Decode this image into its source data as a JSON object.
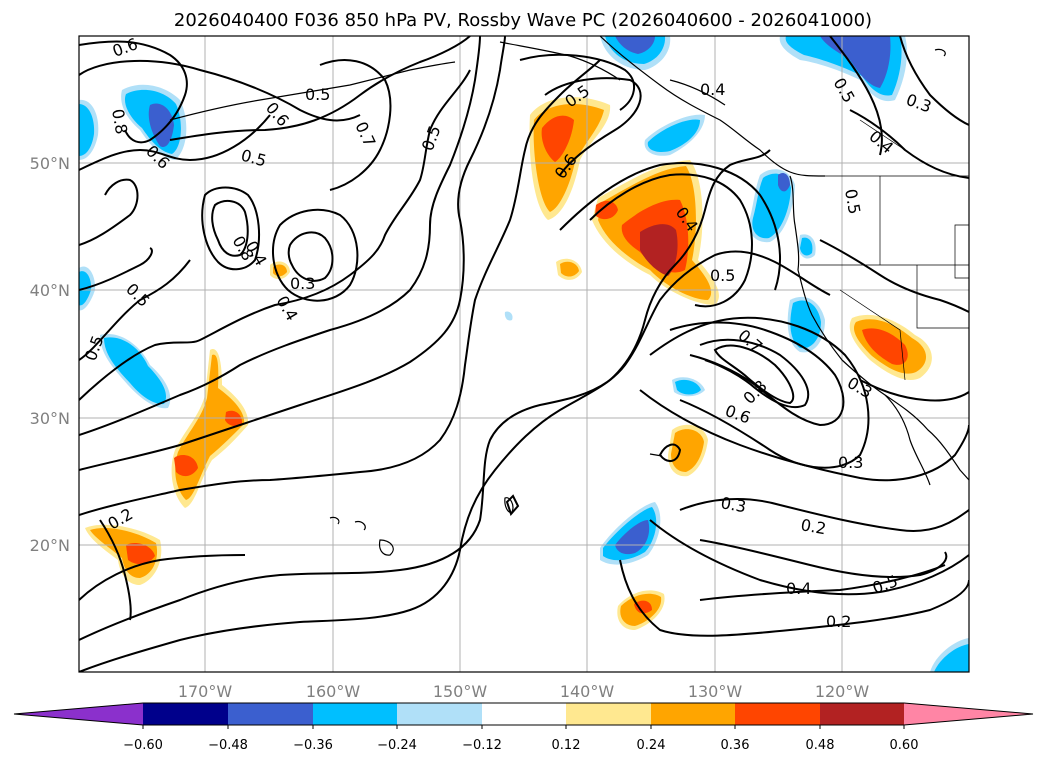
{
  "title": "2026040400 F036 850 hPa PV, Rossby Wave PC (2026040600 - 2026041000)",
  "map": {
    "lon_labels": [
      "170°W",
      "160°W",
      "150°W",
      "140°W",
      "130°W",
      "120°W"
    ],
    "lat_labels": [
      "50°N",
      "40°N",
      "30°N",
      "20°N"
    ]
  },
  "contour_labels": [
    "0.6",
    "0.8",
    "0.6",
    "0.6",
    "0.5",
    "0.7",
    "0.5",
    "0.5",
    "0.6",
    "0.4",
    "0.4",
    "0.5",
    "0.3",
    "0.4",
    "0.5",
    "0.4",
    "0.5",
    "0.8",
    "0.5",
    "0.3",
    "0.4",
    "0.5",
    "0.5",
    "0.7",
    "0.8",
    "0.6",
    "0.3",
    "0.3",
    "0.3",
    "0.2",
    "0.4",
    "0.5",
    "0.2",
    "0.2"
  ],
  "colorbar": {
    "ticks": [
      "−0.60",
      "−0.48",
      "−0.36",
      "−0.24",
      "−0.12",
      "0.12",
      "0.24",
      "0.36",
      "0.48",
      "0.60"
    ],
    "colors": [
      "#8b30cc",
      "#00008b",
      "#3b5fcf",
      "#00bfff",
      "#b0e0f8",
      "#ffffff",
      "#ffe890",
      "#ffa500",
      "#ff4500",
      "#b22222",
      "#ff85a5"
    ]
  },
  "fill_colors": {
    "neg_light": "#b0e0f8",
    "neg_mid": "#00bfff",
    "neg_strong": "#3b5fcf",
    "pos_light": "#ffe890",
    "pos_mid": "#ffa500",
    "pos_strong": "#ff4500",
    "pos_max": "#b22222"
  }
}
